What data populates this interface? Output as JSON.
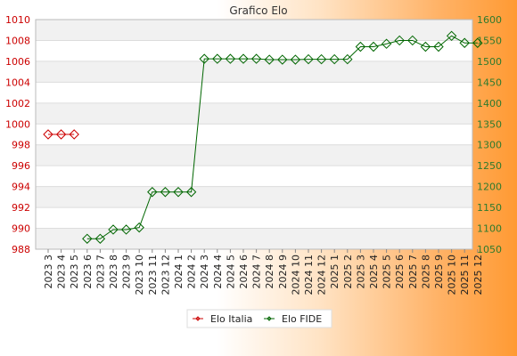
{
  "chart_data": {
    "type": "line",
    "title": "Grafico Elo",
    "categories": [
      "2023 3",
      "2023 4",
      "2023 5",
      "2023 6",
      "2023 7",
      "2023 8",
      "2023 9",
      "2023 10",
      "2023 11",
      "2023 12",
      "2024 1",
      "2024 2",
      "2024 3",
      "2024 4",
      "2024 5",
      "2024 6",
      "2024 7",
      "2024 8",
      "2024 9",
      "2024 10",
      "2024 11",
      "2024 12",
      "2025 1",
      "2025 2",
      "2025 3",
      "2025 4",
      "2025 5",
      "2025 6",
      "2025 7",
      "2025 8",
      "2025 9",
      "2025 10",
      "2025 11",
      "2025 12"
    ],
    "y_left": {
      "min": 988,
      "max": 1010,
      "ticks": [
        988,
        990,
        992,
        994,
        996,
        998,
        1000,
        1002,
        1004,
        1006,
        1008,
        1010
      ]
    },
    "y_right": {
      "min": 1050,
      "max": 1600,
      "ticks": [
        1050,
        1100,
        1150,
        1200,
        1250,
        1300,
        1350,
        1400,
        1450,
        1500,
        1550,
        1600
      ]
    },
    "grid": true,
    "legend_position": "bottom",
    "series": [
      {
        "name": "Elo Italia",
        "axis": "left",
        "color": "#cc0000",
        "values": [
          999,
          999,
          999,
          null,
          null,
          null,
          null,
          null,
          null,
          null,
          null,
          null,
          null,
          null,
          null,
          null,
          null,
          null,
          null,
          null,
          null,
          null,
          null,
          null,
          null,
          null,
          null,
          null,
          null,
          null,
          null,
          null,
          null,
          null
        ]
      },
      {
        "name": "Elo FIDE",
        "axis": "right",
        "color": "#006600",
        "values": [
          null,
          null,
          null,
          1075,
          1075,
          1097,
          1097,
          1102,
          1187,
          1187,
          1187,
          1187,
          1506,
          1506,
          1506,
          1506,
          1506,
          1504,
          1504,
          1504,
          1505,
          1505,
          1505,
          1505,
          1535,
          1535,
          1542,
          1550,
          1550,
          1535,
          1535,
          1561,
          1544,
          1544
        ]
      }
    ]
  }
}
